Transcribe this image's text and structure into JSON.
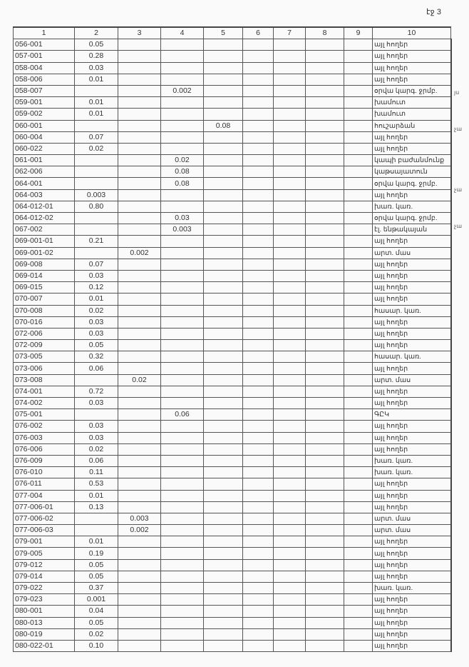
{
  "page_label": "էջ 3",
  "headers": [
    "1",
    "2",
    "3",
    "4",
    "5",
    "6",
    "7",
    "8",
    "9",
    "10"
  ],
  "rows": [
    [
      "056-001",
      "0.05",
      "",
      "",
      "",
      "",
      "",
      "",
      "",
      "այլ հողեր"
    ],
    [
      "057-001",
      "0.28",
      "",
      "",
      "",
      "",
      "",
      "",
      "",
      "այլ հողեր"
    ],
    [
      "058-004",
      "0.03",
      "",
      "",
      "",
      "",
      "",
      "",
      "",
      "այլ հողեր"
    ],
    [
      "058-006",
      "0.01",
      "",
      "",
      "",
      "",
      "",
      "",
      "",
      "այլ հողեր"
    ],
    [
      "058-007",
      "",
      "",
      "0.002",
      "",
      "",
      "",
      "",
      "",
      "օրվա կարգ. ջրմբ."
    ],
    [
      "059-001",
      "0.01",
      "",
      "",
      "",
      "",
      "",
      "",
      "",
      "խամուտ"
    ],
    [
      "059-002",
      "0.01",
      "",
      "",
      "",
      "",
      "",
      "",
      "",
      "խամուտ"
    ],
    [
      "060-001",
      "",
      "",
      "",
      "0.08",
      "",
      "",
      "",
      "",
      "հուշարձան"
    ],
    [
      "060-004",
      "0.07",
      "",
      "",
      "",
      "",
      "",
      "",
      "",
      "այլ հողեր"
    ],
    [
      "060-022",
      "0.02",
      "",
      "",
      "",
      "",
      "",
      "",
      "",
      "այլ հողեր"
    ],
    [
      "061-001",
      "",
      "",
      "0.02",
      "",
      "",
      "",
      "",
      "",
      "կապի բաժանմունք"
    ],
    [
      "062-006",
      "",
      "",
      "0.08",
      "",
      "",
      "",
      "",
      "",
      "կաթսայատուն"
    ],
    [
      "064-001",
      "",
      "",
      "0.08",
      "",
      "",
      "",
      "",
      "",
      "օրվա կարգ. ջրմբ."
    ],
    [
      "064-003",
      "0.003",
      "",
      "",
      "",
      "",
      "",
      "",
      "",
      "այլ հողեր"
    ],
    [
      "064-012-01",
      "0.80",
      "",
      "",
      "",
      "",
      "",
      "",
      "",
      "խառ. կառ."
    ],
    [
      "064-012-02",
      "",
      "",
      "0.03",
      "",
      "",
      "",
      "",
      "",
      "օրվա կարգ. ջրմբ."
    ],
    [
      "067-002",
      "",
      "",
      "0.003",
      "",
      "",
      "",
      "",
      "",
      "էլ. ենթակայան"
    ],
    [
      "069-001-01",
      "0.21",
      "",
      "",
      "",
      "",
      "",
      "",
      "",
      "այլ հողեր"
    ],
    [
      "069-001-02",
      "",
      "0.002",
      "",
      "",
      "",
      "",
      "",
      "",
      "արտ. մաս"
    ],
    [
      "069-008",
      "0.07",
      "",
      "",
      "",
      "",
      "",
      "",
      "",
      "այլ հողեր"
    ],
    [
      "069-014",
      "0.03",
      "",
      "",
      "",
      "",
      "",
      "",
      "",
      "այլ հողեր"
    ],
    [
      "069-015",
      "0.12",
      "",
      "",
      "",
      "",
      "",
      "",
      "",
      "այլ հողեր"
    ],
    [
      "070-007",
      "0.01",
      "",
      "",
      "",
      "",
      "",
      "",
      "",
      "այլ հողեր"
    ],
    [
      "070-008",
      "0.02",
      "",
      "",
      "",
      "",
      "",
      "",
      "",
      "հասար. կառ."
    ],
    [
      "070-016",
      "0.03",
      "",
      "",
      "",
      "",
      "",
      "",
      "",
      "այլ հողեր"
    ],
    [
      "072-006",
      "0.03",
      "",
      "",
      "",
      "",
      "",
      "",
      "",
      "այլ հողեր"
    ],
    [
      "072-009",
      "0.05",
      "",
      "",
      "",
      "",
      "",
      "",
      "",
      "այլ հողեր"
    ],
    [
      "073-005",
      "0.32",
      "",
      "",
      "",
      "",
      "",
      "",
      "",
      "հասար. կառ."
    ],
    [
      "073-006",
      "0.06",
      "",
      "",
      "",
      "",
      "",
      "",
      "",
      "այլ հողեր"
    ],
    [
      "073-008",
      "",
      "0.02",
      "",
      "",
      "",
      "",
      "",
      "",
      "արտ. մաս"
    ],
    [
      "074-001",
      "0.72",
      "",
      "",
      "",
      "",
      "",
      "",
      "",
      "այլ հողեր"
    ],
    [
      "074-002",
      "0.03",
      "",
      "",
      "",
      "",
      "",
      "",
      "",
      "այլ հողեր"
    ],
    [
      "075-001",
      "",
      "",
      "0.06",
      "",
      "",
      "",
      "",
      "",
      "ԳԸԿ"
    ],
    [
      "076-002",
      "0.03",
      "",
      "",
      "",
      "",
      "",
      "",
      "",
      "այլ հողեր"
    ],
    [
      "076-003",
      "0.03",
      "",
      "",
      "",
      "",
      "",
      "",
      "",
      "այլ հողեր"
    ],
    [
      "076-006",
      "0.02",
      "",
      "",
      "",
      "",
      "",
      "",
      "",
      "այլ հողեր"
    ],
    [
      "076-009",
      "0.06",
      "",
      "",
      "",
      "",
      "",
      "",
      "",
      "խառ. կառ."
    ],
    [
      "076-010",
      "0.11",
      "",
      "",
      "",
      "",
      "",
      "",
      "",
      "խառ. կառ."
    ],
    [
      "076-011",
      "0.53",
      "",
      "",
      "",
      "",
      "",
      "",
      "",
      "այլ հողեր"
    ],
    [
      "077-004",
      "0.01",
      "",
      "",
      "",
      "",
      "",
      "",
      "",
      "այլ հողեր"
    ],
    [
      "077-006-01",
      "0.13",
      "",
      "",
      "",
      "",
      "",
      "",
      "",
      "այլ հողեր"
    ],
    [
      "077-006-02",
      "",
      "0.003",
      "",
      "",
      "",
      "",
      "",
      "",
      "արտ. մաս"
    ],
    [
      "077-006-03",
      "",
      "0.002",
      "",
      "",
      "",
      "",
      "",
      "",
      "արտ. մաս"
    ],
    [
      "079-001",
      "0.01",
      "",
      "",
      "",
      "",
      "",
      "",
      "",
      "այլ հողեր"
    ],
    [
      "079-005",
      "0.19",
      "",
      "",
      "",
      "",
      "",
      "",
      "",
      "այլ հողեր"
    ],
    [
      "079-012",
      "0.05",
      "",
      "",
      "",
      "",
      "",
      "",
      "",
      "այլ հողեր"
    ],
    [
      "079-014",
      "0.05",
      "",
      "",
      "",
      "",
      "",
      "",
      "",
      "այլ հողեր"
    ],
    [
      "079-022",
      "0.37",
      "",
      "",
      "",
      "",
      "",
      "",
      "",
      "խառ. կառ."
    ],
    [
      "079-023",
      "0.001",
      "",
      "",
      "",
      "",
      "",
      "",
      "",
      "այլ հողեր"
    ],
    [
      "080-001",
      "0.04",
      "",
      "",
      "",
      "",
      "",
      "",
      "",
      "այլ հողեր"
    ],
    [
      "080-013",
      "0.05",
      "",
      "",
      "",
      "",
      "",
      "",
      "",
      "այլ հողեր"
    ],
    [
      "080-019",
      "0.02",
      "",
      "",
      "",
      "",
      "",
      "",
      "",
      "այլ հողեր"
    ],
    [
      "080-022-01",
      "0.10",
      "",
      "",
      "",
      "",
      "",
      "",
      "",
      "այլ հողեր"
    ]
  ],
  "margin_notes": [
    {
      "row": 4,
      "text": "յս"
    },
    {
      "row": 7,
      "text": "չա"
    },
    {
      "row": 12,
      "text": "չա"
    },
    {
      "row": 15,
      "text": "չա"
    }
  ]
}
